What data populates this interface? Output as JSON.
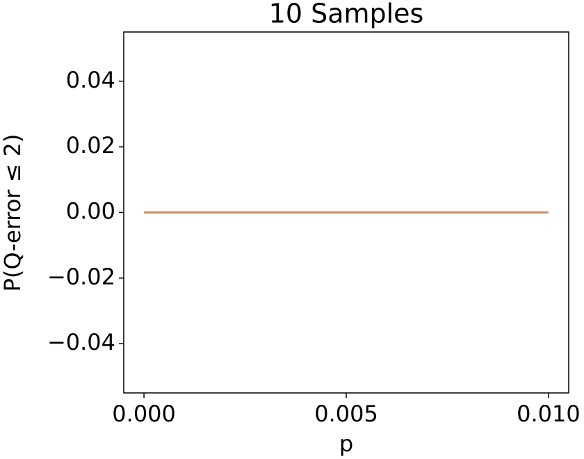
{
  "chart_data": {
    "type": "line",
    "title": "10 Samples",
    "x_label": "p",
    "y_label": "P(Q-error  ≤  2)",
    "x": [
      0,
      0.01
    ],
    "series": [
      {
        "color": "#d08b5f",
        "values": [
          0,
          0
        ]
      }
    ],
    "xlim": [
      -0.0005,
      0.0105
    ],
    "xticks": [
      {
        "value": 0,
        "label": "0.000"
      },
      {
        "value": 0.005,
        "label": "0.005"
      },
      {
        "value": 0.01,
        "label": "0.010"
      }
    ],
    "ylim": [
      -0.055,
      0.055
    ],
    "yticks": [
      {
        "value": -0.04,
        "label": "−0.04"
      },
      {
        "value": -0.02,
        "label": "−0.02"
      },
      {
        "value": 0,
        "label": "0.00"
      },
      {
        "value": 0.02,
        "label": "0.02"
      },
      {
        "value": 0.04,
        "label": "0.04"
      }
    ],
    "grid": false
  }
}
